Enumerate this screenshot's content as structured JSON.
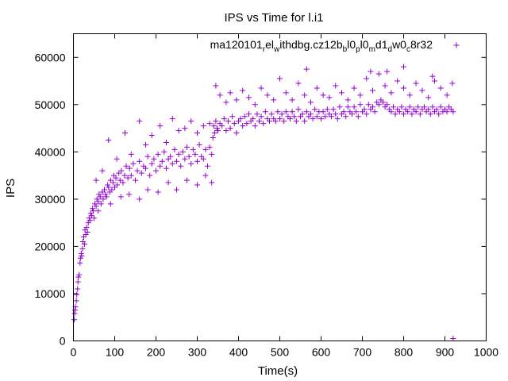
{
  "chart_data": {
    "type": "scatter",
    "title": "IPS vs Time for l.i1",
    "xlabel": "Time(s)",
    "ylabel": "IPS",
    "xlim": [
      0,
      1000
    ],
    "ylim": [
      0,
      65000
    ],
    "xticks": [
      0,
      100,
      200,
      300,
      400,
      500,
      600,
      700,
      800,
      900,
      1000
    ],
    "yticks": [
      0,
      10000,
      20000,
      30000,
      40000,
      50000,
      60000
    ],
    "grid": false,
    "legend_position": "top-right",
    "marker_color": "#9400d3",
    "legend": {
      "parts": [
        {
          "text": "ma120101",
          "sub": false
        },
        {
          "text": "r",
          "sub": true
        },
        {
          "text": "el",
          "sub": false
        },
        {
          "text": "w",
          "sub": true
        },
        {
          "text": "ithdbg.cz12b",
          "sub": false
        },
        {
          "text": "b",
          "sub": true
        },
        {
          "text": "l0",
          "sub": false
        },
        {
          "text": "p",
          "sub": true
        },
        {
          "text": "l0",
          "sub": false
        },
        {
          "text": "m",
          "sub": true
        },
        {
          "text": "d1",
          "sub": false
        },
        {
          "text": "d",
          "sub": true
        },
        {
          "text": "w0",
          "sub": false
        },
        {
          "text": "c",
          "sub": true
        },
        {
          "text": "8r32",
          "sub": false
        }
      ]
    },
    "series": [
      {
        "name": "ma120101relwithdbg.cz12bbl0pl0md1dw0c8r32",
        "points": [
          [
            2,
            4500
          ],
          [
            3,
            5800
          ],
          [
            4,
            6500
          ],
          [
            5,
            7200
          ],
          [
            7,
            8500
          ],
          [
            8,
            9800
          ],
          [
            10,
            11000
          ],
          [
            11,
            12500
          ],
          [
            12,
            13500
          ],
          [
            14,
            14000
          ],
          [
            16,
            16500
          ],
          [
            17,
            17500
          ],
          [
            19,
            18500
          ],
          [
            20,
            18000
          ],
          [
            22,
            19500
          ],
          [
            23,
            21000
          ],
          [
            25,
            22000
          ],
          [
            27,
            20500
          ],
          [
            28,
            23500
          ],
          [
            30,
            22500
          ],
          [
            32,
            24000
          ],
          [
            34,
            23000
          ],
          [
            36,
            25000
          ],
          [
            38,
            26000
          ],
          [
            40,
            25500
          ],
          [
            42,
            27000
          ],
          [
            44,
            26500
          ],
          [
            46,
            28000
          ],
          [
            48,
            27500
          ],
          [
            50,
            26000
          ],
          [
            52,
            29000
          ],
          [
            55,
            28500
          ],
          [
            57,
            30000
          ],
          [
            60,
            29500
          ],
          [
            62,
            31000
          ],
          [
            65,
            30500
          ],
          [
            67,
            29000
          ],
          [
            70,
            31500
          ],
          [
            72,
            30000
          ],
          [
            75,
            32000
          ],
          [
            78,
            31000
          ],
          [
            80,
            30500
          ],
          [
            83,
            33000
          ],
          [
            85,
            32500
          ],
          [
            88,
            31500
          ],
          [
            90,
            34000
          ],
          [
            93,
            32000
          ],
          [
            96,
            33500
          ],
          [
            98,
            35000
          ],
          [
            100,
            32500
          ],
          [
            103,
            34500
          ],
          [
            106,
            33000
          ],
          [
            110,
            35500
          ],
          [
            113,
            34000
          ],
          [
            116,
            36000
          ],
          [
            120,
            33500
          ],
          [
            124,
            35000
          ],
          [
            128,
            37000
          ],
          [
            132,
            34500
          ],
          [
            136,
            36500
          ],
          [
            140,
            35000
          ],
          [
            145,
            37500
          ],
          [
            150,
            34000
          ],
          [
            155,
            36000
          ],
          [
            160,
            38000
          ],
          [
            165,
            35500
          ],
          [
            170,
            37000
          ],
          [
            175,
            36500
          ],
          [
            180,
            39000
          ],
          [
            185,
            35000
          ],
          [
            190,
            37500
          ],
          [
            195,
            38500
          ],
          [
            200,
            36000
          ],
          [
            205,
            39500
          ],
          [
            210,
            37000
          ],
          [
            215,
            38000
          ],
          [
            220,
            40000
          ],
          [
            225,
            36500
          ],
          [
            230,
            38500
          ],
          [
            235,
            39000
          ],
          [
            240,
            37500
          ],
          [
            245,
            40500
          ],
          [
            250,
            38000
          ],
          [
            255,
            39500
          ],
          [
            260,
            37000
          ],
          [
            265,
            40000
          ],
          [
            270,
            38500
          ],
          [
            275,
            41000
          ],
          [
            280,
            39000
          ],
          [
            285,
            37500
          ],
          [
            290,
            40500
          ],
          [
            295,
            39500
          ],
          [
            300,
            38000
          ],
          [
            305,
            41500
          ],
          [
            310,
            39000
          ],
          [
            315,
            38500
          ],
          [
            320,
            40500
          ],
          [
            325,
            37000
          ],
          [
            330,
            41000
          ],
          [
            335,
            39500
          ],
          [
            55,
            34000
          ],
          [
            70,
            36000
          ],
          [
            85,
            42500
          ],
          [
            105,
            38500
          ],
          [
            125,
            44000
          ],
          [
            140,
            39500
          ],
          [
            160,
            46500
          ],
          [
            175,
            41500
          ],
          [
            190,
            43500
          ],
          [
            210,
            45500
          ],
          [
            225,
            42000
          ],
          [
            240,
            47000
          ],
          [
            255,
            44500
          ],
          [
            270,
            45000
          ],
          [
            285,
            46500
          ],
          [
            300,
            44000
          ],
          [
            315,
            45500
          ],
          [
            330,
            46000
          ],
          [
            60,
            27500
          ],
          [
            90,
            29000
          ],
          [
            115,
            30500
          ],
          [
            135,
            31000
          ],
          [
            160,
            30000
          ],
          [
            180,
            32000
          ],
          [
            205,
            31500
          ],
          [
            230,
            33500
          ],
          [
            250,
            32000
          ],
          [
            275,
            34000
          ],
          [
            300,
            33000
          ],
          [
            320,
            35000
          ],
          [
            335,
            33500
          ],
          [
            338,
            43000
          ],
          [
            340,
            45500
          ],
          [
            342,
            44000
          ],
          [
            345,
            46500
          ],
          [
            348,
            45000
          ],
          [
            350,
            44500
          ],
          [
            355,
            46000
          ],
          [
            360,
            45500
          ],
          [
            365,
            47000
          ],
          [
            370,
            44500
          ],
          [
            375,
            46500
          ],
          [
            380,
            45000
          ],
          [
            385,
            47500
          ],
          [
            390,
            46000
          ],
          [
            395,
            44000
          ],
          [
            400,
            46500
          ],
          [
            405,
            47000
          ],
          [
            410,
            45500
          ],
          [
            415,
            47500
          ],
          [
            420,
            46000
          ],
          [
            425,
            48000
          ],
          [
            430,
            46500
          ],
          [
            435,
            47000
          ],
          [
            440,
            45500
          ],
          [
            445,
            48000
          ],
          [
            450,
            46500
          ],
          [
            455,
            47500
          ],
          [
            460,
            46000
          ],
          [
            465,
            48500
          ],
          [
            470,
            47000
          ],
          [
            475,
            46500
          ],
          [
            480,
            48000
          ],
          [
            485,
            47000
          ],
          [
            490,
            46500
          ],
          [
            495,
            48500
          ],
          [
            500,
            47000
          ],
          [
            505,
            48000
          ],
          [
            510,
            46500
          ],
          [
            515,
            48500
          ],
          [
            520,
            47500
          ],
          [
            525,
            47000
          ],
          [
            530,
            48500
          ],
          [
            535,
            47500
          ],
          [
            540,
            46500
          ],
          [
            545,
            49000
          ],
          [
            550,
            47500
          ],
          [
            555,
            48000
          ],
          [
            560,
            46500
          ],
          [
            565,
            48500
          ],
          [
            570,
            47500
          ],
          [
            575,
            48000
          ],
          [
            580,
            47000
          ],
          [
            585,
            49000
          ],
          [
            590,
            47500
          ],
          [
            595,
            48500
          ],
          [
            600,
            47000
          ],
          [
            605,
            48500
          ],
          [
            610,
            47500
          ],
          [
            615,
            49000
          ],
          [
            620,
            48000
          ],
          [
            625,
            47500
          ],
          [
            630,
            49000
          ],
          [
            635,
            48000
          ],
          [
            640,
            47000
          ],
          [
            645,
            49500
          ],
          [
            650,
            48000
          ],
          [
            655,
            48500
          ],
          [
            660,
            47500
          ],
          [
            665,
            49500
          ],
          [
            670,
            48500
          ],
          [
            675,
            48000
          ],
          [
            680,
            49500
          ],
          [
            685,
            48500
          ],
          [
            690,
            47500
          ],
          [
            695,
            50000
          ],
          [
            700,
            48500
          ],
          [
            705,
            49000
          ],
          [
            710,
            48000
          ],
          [
            715,
            50000
          ],
          [
            720,
            49000
          ],
          [
            725,
            49500
          ],
          [
            730,
            48500
          ],
          [
            735,
            50500
          ],
          [
            740,
            50000
          ],
          [
            745,
            51000
          ],
          [
            750,
            50500
          ],
          [
            755,
            49500
          ],
          [
            760,
            50000
          ],
          [
            765,
            49000
          ],
          [
            770,
            48500
          ],
          [
            775,
            49500
          ],
          [
            780,
            48000
          ],
          [
            785,
            49000
          ],
          [
            790,
            48500
          ],
          [
            795,
            49500
          ],
          [
            800,
            48000
          ],
          [
            805,
            49000
          ],
          [
            810,
            48500
          ],
          [
            815,
            49500
          ],
          [
            820,
            48000
          ],
          [
            825,
            49000
          ],
          [
            830,
            48500
          ],
          [
            835,
            49500
          ],
          [
            840,
            48000
          ],
          [
            845,
            49000
          ],
          [
            850,
            49500
          ],
          [
            855,
            48500
          ],
          [
            860,
            49000
          ],
          [
            865,
            48000
          ],
          [
            870,
            49500
          ],
          [
            875,
            48500
          ],
          [
            880,
            49000
          ],
          [
            885,
            48000
          ],
          [
            890,
            49500
          ],
          [
            895,
            48500
          ],
          [
            900,
            49000
          ],
          [
            905,
            48500
          ],
          [
            910,
            49500
          ],
          [
            915,
            49000
          ],
          [
            920,
            48500
          ],
          [
            345,
            54000
          ],
          [
            355,
            52000
          ],
          [
            370,
            50500
          ],
          [
            380,
            52500
          ],
          [
            395,
            51000
          ],
          [
            410,
            53000
          ],
          [
            425,
            51500
          ],
          [
            440,
            50000
          ],
          [
            455,
            53500
          ],
          [
            470,
            52000
          ],
          [
            485,
            51000
          ],
          [
            500,
            55500
          ],
          [
            515,
            52500
          ],
          [
            530,
            51000
          ],
          [
            545,
            54500
          ],
          [
            560,
            52000
          ],
          [
            575,
            50500
          ],
          [
            590,
            53500
          ],
          [
            605,
            52000
          ],
          [
            620,
            51500
          ],
          [
            635,
            54000
          ],
          [
            650,
            52500
          ],
          [
            665,
            51000
          ],
          [
            680,
            53500
          ],
          [
            695,
            52000
          ],
          [
            710,
            55500
          ],
          [
            725,
            53000
          ],
          [
            740,
            56500
          ],
          [
            755,
            54000
          ],
          [
            770,
            52500
          ],
          [
            785,
            55000
          ],
          [
            800,
            53500
          ],
          [
            815,
            52000
          ],
          [
            830,
            54500
          ],
          [
            845,
            53000
          ],
          [
            860,
            51500
          ],
          [
            875,
            55000
          ],
          [
            890,
            53500
          ],
          [
            905,
            52000
          ],
          [
            918,
            54500
          ],
          [
            565,
            57500
          ],
          [
            720,
            57000
          ],
          [
            800,
            58000
          ],
          [
            760,
            57000
          ],
          [
            870,
            56000
          ],
          [
            920,
            500
          ]
        ]
      }
    ]
  }
}
